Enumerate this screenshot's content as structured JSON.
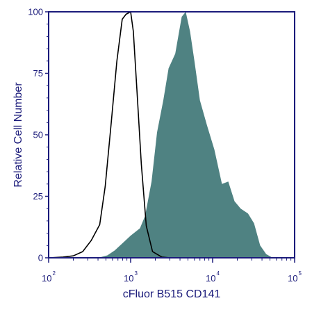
{
  "chart_data": {
    "type": "area",
    "title": "",
    "xlabel": "cFluor B515 CD141",
    "ylabel": "Relative Cell Number",
    "x_scale": "log",
    "xlim": [
      100,
      100000
    ],
    "ylim": [
      0,
      100
    ],
    "x_ticks": [
      {
        "base": "10",
        "exp": "2",
        "value": 100
      },
      {
        "base": "10",
        "exp": "3",
        "value": 1000
      },
      {
        "base": "10",
        "exp": "4",
        "value": 10000
      },
      {
        "base": "10",
        "exp": "5",
        "value": 100000
      }
    ],
    "y_ticks": [
      "0",
      "25",
      "50",
      "75",
      "100"
    ],
    "y_tick_values": [
      0,
      25,
      50,
      75,
      100
    ],
    "grid": false,
    "colors": {
      "filled": "#4f8282",
      "outline": "#000000",
      "axes": "#1a1a7a"
    },
    "series": [
      {
        "style": "outline",
        "points": [
          [
            100,
            0
          ],
          [
            150,
            0.3
          ],
          [
            200,
            0.8
          ],
          [
            260,
            2.5
          ],
          [
            330,
            7
          ],
          [
            420,
            13.5
          ],
          [
            490,
            29
          ],
          [
            580,
            55
          ],
          [
            680,
            80
          ],
          [
            790,
            97
          ],
          [
            880,
            99
          ],
          [
            1000,
            100
          ],
          [
            1080,
            92
          ],
          [
            1200,
            67
          ],
          [
            1350,
            38
          ],
          [
            1550,
            13
          ],
          [
            1850,
            2.5
          ],
          [
            2400,
            0.3
          ],
          [
            3000,
            0
          ]
        ]
      },
      {
        "style": "filled",
        "points": [
          [
            100,
            0
          ],
          [
            400,
            0
          ],
          [
            520,
            1
          ],
          [
            640,
            3
          ],
          [
            800,
            6
          ],
          [
            1000,
            9
          ],
          [
            1300,
            12
          ],
          [
            1500,
            17
          ],
          [
            1800,
            31
          ],
          [
            2100,
            51
          ],
          [
            2500,
            64
          ],
          [
            2900,
            77
          ],
          [
            3500,
            83
          ],
          [
            4200,
            98
          ],
          [
            4700,
            100
          ],
          [
            5300,
            92
          ],
          [
            6000,
            80
          ],
          [
            7000,
            64
          ],
          [
            8500,
            54
          ],
          [
            10500,
            44
          ],
          [
            13000,
            30
          ],
          [
            15500,
            31
          ],
          [
            18500,
            23
          ],
          [
            22000,
            20
          ],
          [
            27000,
            18
          ],
          [
            32000,
            14
          ],
          [
            38000,
            5
          ],
          [
            45000,
            1.5
          ],
          [
            52000,
            0.3
          ],
          [
            100000,
            0
          ]
        ]
      }
    ]
  }
}
